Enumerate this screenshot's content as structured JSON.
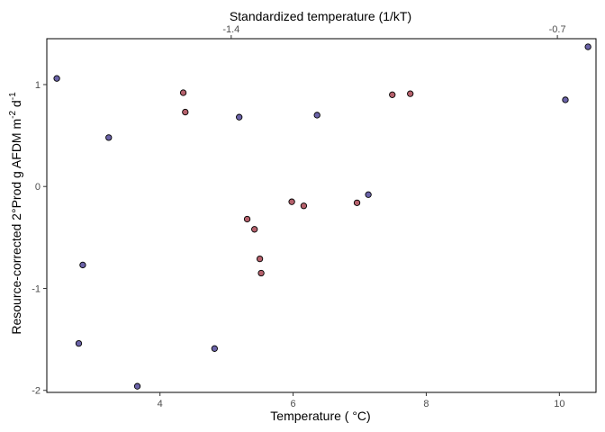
{
  "chart_data": {
    "type": "scatter",
    "title": "",
    "xlabel": "Temperature ( °C)",
    "ylabel_main": "Resource-corrected 2°Prod g AFDM m",
    "ylabel_sup1": "-2",
    "ylabel_mid": " d",
    "ylabel_sup2": "-1",
    "top_xlabel": "Standardized temperature (1/kT)",
    "xlim": [
      2.3,
      10.55
    ],
    "ylim": [
      -2.02,
      1.45
    ],
    "xticks": [
      4,
      6,
      8,
      10
    ],
    "yticks": [
      -2,
      -1,
      0,
      1
    ],
    "top_ticks": [
      {
        "label": "-1.4",
        "x": 5.07
      },
      {
        "label": "-0.7",
        "x": 9.97
      }
    ],
    "grid": false,
    "colors": {
      "purple": "#6b63a8",
      "red": "#b5616c",
      "stroke": "#000000",
      "frame": "#000000"
    },
    "points": [
      {
        "x": 2.45,
        "y": 1.06,
        "color": "purple"
      },
      {
        "x": 2.78,
        "y": -1.54,
        "color": "purple"
      },
      {
        "x": 2.84,
        "y": -0.77,
        "color": "purple"
      },
      {
        "x": 3.23,
        "y": 0.48,
        "color": "purple"
      },
      {
        "x": 3.66,
        "y": -1.96,
        "color": "purple"
      },
      {
        "x": 4.35,
        "y": 0.92,
        "color": "red"
      },
      {
        "x": 4.38,
        "y": 0.73,
        "color": "red"
      },
      {
        "x": 4.82,
        "y": -1.59,
        "color": "purple"
      },
      {
        "x": 5.19,
        "y": 0.68,
        "color": "purple"
      },
      {
        "x": 5.31,
        "y": -0.32,
        "color": "red"
      },
      {
        "x": 5.42,
        "y": -0.42,
        "color": "red"
      },
      {
        "x": 5.5,
        "y": -0.71,
        "color": "red"
      },
      {
        "x": 5.52,
        "y": -0.85,
        "color": "red"
      },
      {
        "x": 5.98,
        "y": -0.15,
        "color": "red"
      },
      {
        "x": 6.16,
        "y": -0.19,
        "color": "red"
      },
      {
        "x": 6.36,
        "y": 0.7,
        "color": "purple"
      },
      {
        "x": 6.96,
        "y": -0.16,
        "color": "red"
      },
      {
        "x": 7.13,
        "y": -0.08,
        "color": "purple"
      },
      {
        "x": 7.49,
        "y": 0.9,
        "color": "red"
      },
      {
        "x": 7.76,
        "y": 0.91,
        "color": "red"
      },
      {
        "x": 10.09,
        "y": 0.85,
        "color": "purple"
      },
      {
        "x": 10.43,
        "y": 1.37,
        "color": "purple"
      }
    ]
  }
}
